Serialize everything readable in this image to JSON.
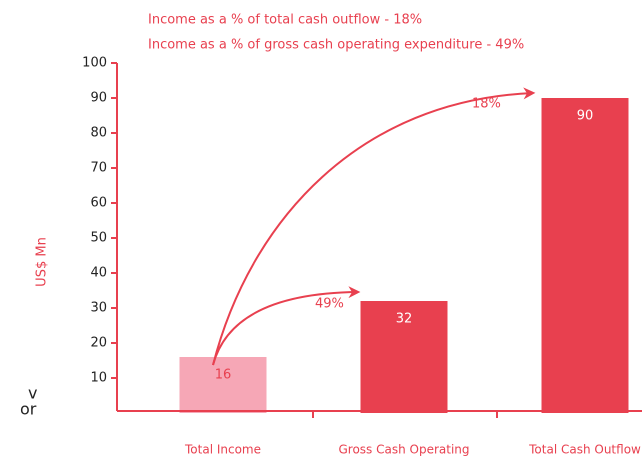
{
  "chart_data": {
    "type": "bar",
    "annotations": [
      "Income as a % of  total cash outflow - 18%",
      "Income as a % of gross cash operating expenditure - 49%"
    ],
    "ylabel": "US$ Mn",
    "categories": [
      "Total Income",
      "Gross Cash Operating",
      "Total Cash Outflow"
    ],
    "values": [
      16,
      32,
      90
    ],
    "colors": [
      "#f6a7b6",
      "#e8404f",
      "#e8404f"
    ],
    "arrow_labels": [
      "49%",
      "18%"
    ],
    "side_fragments": [
      "v",
      "or"
    ],
    "ylim": [
      0,
      100
    ],
    "yticks": [
      10,
      20,
      30,
      40,
      50,
      60,
      70,
      80,
      90,
      100
    ]
  }
}
